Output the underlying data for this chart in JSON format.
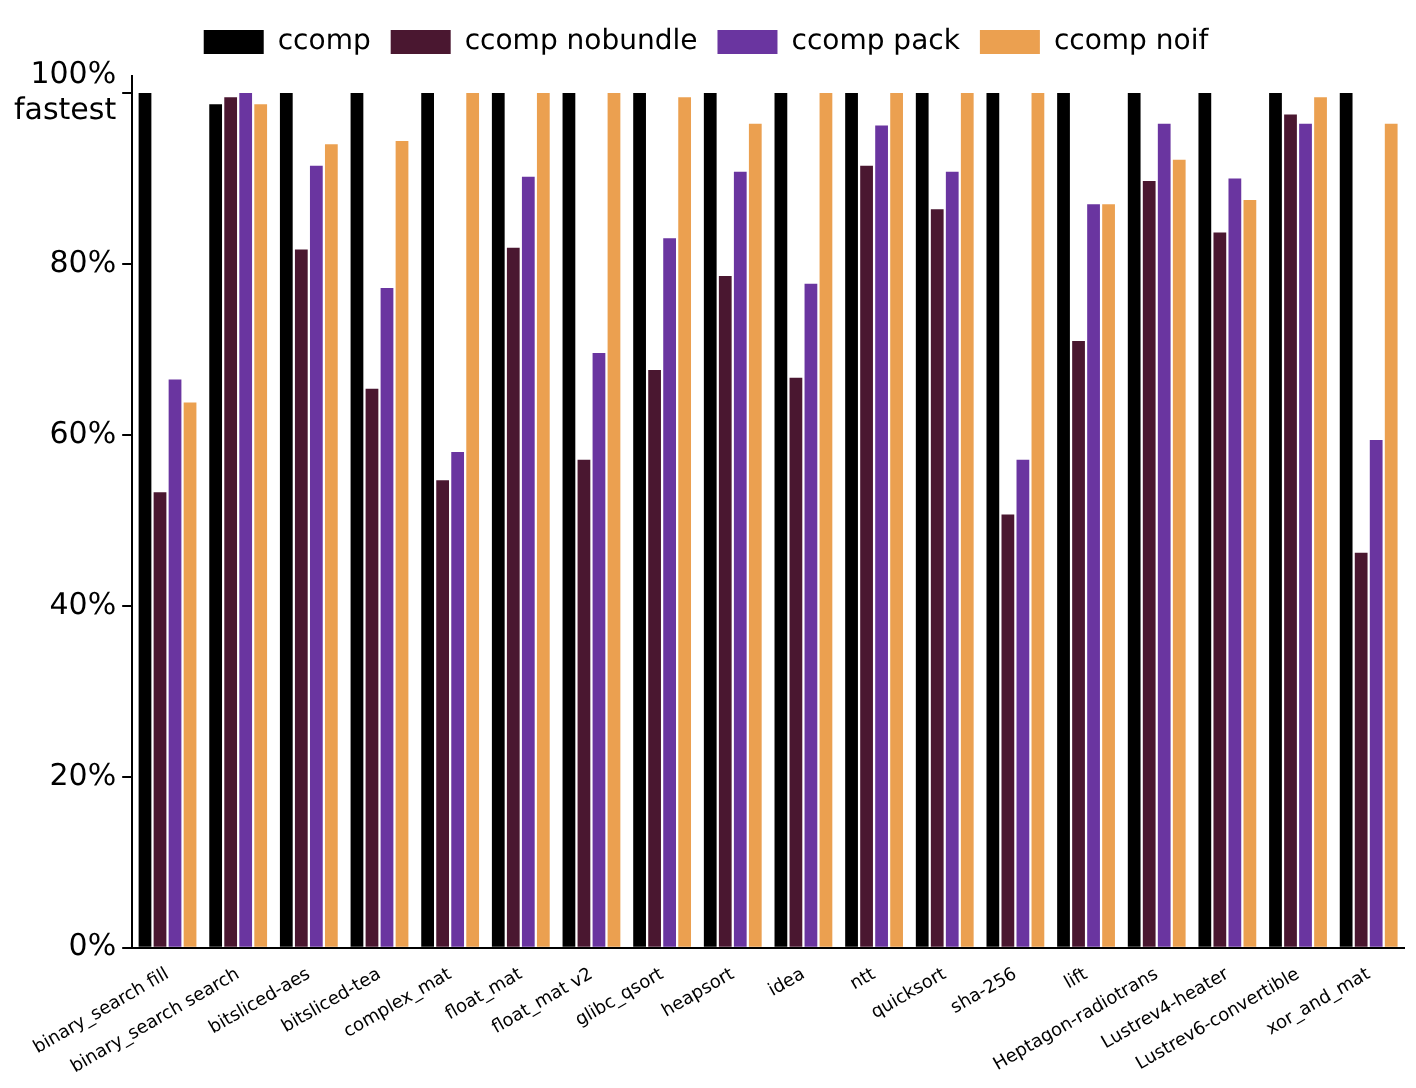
{
  "chart_data": {
    "type": "bar",
    "categories": [
      "binary_search fill",
      "binary_search search",
      "bitsliced-aes",
      "bitsliced-tea",
      "complex_mat",
      "float_mat",
      "float_mat v2",
      "glibc_qsort",
      "heapsort",
      "idea",
      "ntt",
      "quicksort",
      "sha-256",
      "lift",
      "Heptagon-radiotrans",
      "Lustrev4-heater",
      "Lustrev6-convertible",
      "xor_and_mat"
    ],
    "series": [
      {
        "name": "ccomp",
        "color": "#000000",
        "values": [
          100,
          98.7,
          100,
          100,
          100,
          100,
          100,
          100,
          100,
          100,
          100,
          100,
          100,
          100,
          100,
          100,
          100,
          100
        ]
      },
      {
        "name": "ccomp nobundle",
        "color": "#4a1730",
        "values": [
          53.3,
          99.5,
          81.7,
          65.4,
          54.7,
          81.9,
          57.1,
          67.6,
          78.6,
          66.7,
          91.5,
          86.4,
          50.7,
          71,
          89.7,
          83.7,
          97.5,
          46.2
        ]
      },
      {
        "name": "ccomp pack",
        "color": "#6a35a0",
        "values": [
          66.5,
          100,
          91.5,
          77.2,
          58,
          90.2,
          69.6,
          83,
          90.8,
          77.7,
          96.2,
          90.8,
          57.1,
          87,
          96.4,
          90,
          96.4,
          59.4
        ]
      },
      {
        "name": "ccomp noif",
        "color": "#eba050",
        "values": [
          63.8,
          98.7,
          94,
          94.4,
          100,
          100,
          100,
          99.5,
          96.4,
          100,
          100,
          100,
          100,
          87,
          92.2,
          87.5,
          99.5,
          96.4
        ]
      }
    ],
    "ylim": [
      0,
      102
    ],
    "yticks": [
      {
        "value": 0,
        "label": "0%"
      },
      {
        "value": 20,
        "label": "20%"
      },
      {
        "value": 40,
        "label": "40%"
      },
      {
        "value": 60,
        "label": "60%"
      },
      {
        "value": 80,
        "label": "80%"
      },
      {
        "value": 100,
        "label": "100%\nfastest"
      }
    ],
    "grid": false,
    "legend": "top"
  }
}
